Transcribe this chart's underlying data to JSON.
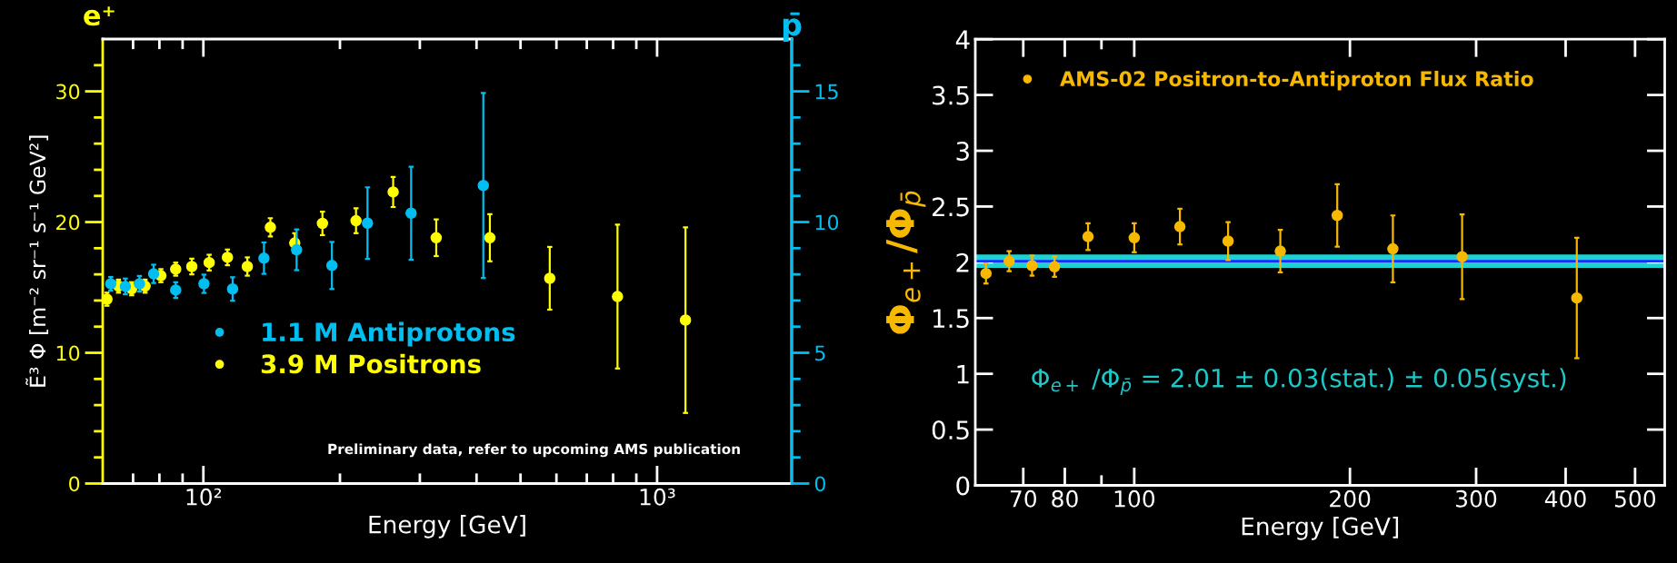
{
  "chart_data": [
    {
      "type": "scatter",
      "xlabel": "Energy [GeV]",
      "ylabel": "Ẽ³ Φ [m⁻² sr⁻¹ s⁻¹ GeV²]",
      "y2label": "p̄",
      "log": "x",
      "grid": false,
      "legend": "left",
      "marker": "circle",
      "annotations": [
        "e⁺",
        "Preliminary data, refer to upcoming AMS publication"
      ],
      "xlim": [
        60,
        1980
      ],
      "xticks": [
        {
          "value": 70,
          "label": null
        },
        {
          "value": 80,
          "label": null
        },
        {
          "value": 90,
          "label": null
        },
        {
          "value": 100,
          "label": "10²"
        },
        {
          "value": 200,
          "label": null
        },
        {
          "value": 300,
          "label": null
        },
        {
          "value": 400,
          "label": null
        },
        {
          "value": 500,
          "label": null
        },
        {
          "value": 600,
          "label": null
        },
        {
          "value": 700,
          "label": null
        },
        {
          "value": 800,
          "label": null
        },
        {
          "value": 900,
          "label": null
        },
        {
          "value": 1000,
          "label": "10³"
        }
      ],
      "ylim": [
        0,
        34
      ],
      "yticks": [
        0,
        {
          "value": 2,
          "label": null
        },
        {
          "value": 4,
          "label": null
        },
        {
          "value": 6,
          "label": null
        },
        {
          "value": 8,
          "label": null
        },
        10,
        {
          "value": 12,
          "label": null
        },
        {
          "value": 14,
          "label": null
        },
        {
          "value": 16,
          "label": null
        },
        {
          "value": 18,
          "label": null
        },
        20,
        {
          "value": 22,
          "label": null
        },
        {
          "value": 24,
          "label": null
        },
        {
          "value": 26,
          "label": null
        },
        {
          "value": 28,
          "label": null
        },
        30,
        {
          "value": 32,
          "label": null
        }
      ],
      "y2lim": [
        0,
        17
      ],
      "y2ticks": [
        0,
        {
          "value": 1,
          "label": null
        },
        {
          "value": 2,
          "label": null
        },
        {
          "value": 3,
          "label": null
        },
        {
          "value": 4,
          "label": null
        },
        5,
        {
          "value": 6,
          "label": null
        },
        {
          "value": 7,
          "label": null
        },
        {
          "value": 8,
          "label": null
        },
        {
          "value": 9,
          "label": null
        },
        10,
        {
          "value": 11,
          "label": null
        },
        {
          "value": 12,
          "label": null
        },
        {
          "value": 13,
          "label": null
        },
        {
          "value": 14,
          "label": null
        },
        15,
        {
          "value": 16,
          "label": null
        }
      ],
      "series": [
        {
          "name": "1.1 M Antiprotons",
          "color": "#00bff0",
          "axis": "y2",
          "x": [
            62.5,
            67.3,
            72.3,
            77.7,
            86.9,
            100.3,
            116,
            136,
            160.5,
            192,
            230,
            287,
            414
          ],
          "values": [
            7.64,
            7.54,
            7.64,
            8.02,
            7.4,
            7.64,
            7.44,
            8.62,
            8.94,
            8.34,
            9.96,
            10.34,
            11.4
          ],
          "errors": [
            0.26,
            0.3,
            0.3,
            0.35,
            0.3,
            0.35,
            0.45,
            0.6,
            0.78,
            0.9,
            1.37,
            1.78,
            3.54
          ]
        },
        {
          "name": "3.9 M Positrons",
          "color": "#ffff00",
          "x": [
            61.3,
            65,
            69.5,
            74.4,
            80.6,
            86.9,
            94.3,
            103,
            113,
            125,
            140.5,
            159,
            183,
            217,
            262,
            326,
            428,
            580,
            818,
            1155
          ],
          "values": [
            14.1,
            15.1,
            14.9,
            15.1,
            15.9,
            16.4,
            16.6,
            16.9,
            17.3,
            16.6,
            19.6,
            18.4,
            19.9,
            20.1,
            22.3,
            18.8,
            18.8,
            15.7,
            14.3,
            12.5
          ],
          "errors": [
            0.5,
            0.5,
            0.5,
            0.5,
            0.5,
            0.5,
            0.6,
            0.6,
            0.6,
            0.7,
            0.7,
            0.75,
            0.9,
            0.95,
            1.15,
            1.4,
            1.8,
            2.4,
            5.5,
            7.1
          ]
        }
      ]
    },
    {
      "type": "scatter",
      "xlabel": "Energy [GeV]",
      "ylabel": "Φ$_{e+}$/Φ$_{p̄}$",
      "log": "x",
      "grid": false,
      "legend": "top left",
      "marker": "circle",
      "annotations": [
        "Φ$_{e+}$ /Φ$_{p̄}$ = 2.01 ± 0.03(stat.) ± 0.05(syst.)"
      ],
      "xlim": [
        60,
        550
      ],
      "xticks": [
        70,
        80,
        {
          "value": 90,
          "label": null
        },
        100,
        200,
        300,
        400,
        500
      ],
      "ylim": [
        0,
        4
      ],
      "yticks": [
        0,
        0.5,
        1,
        1.5,
        2,
        2.5,
        3,
        3.5,
        4
      ],
      "bands": [
        {
          "axis": "y",
          "from": 1.95,
          "to": 2.07,
          "color": "#1ed2d2"
        }
      ],
      "ref_lines": [
        {
          "axis": "y",
          "value": 2.01,
          "color": "#1a2cff"
        }
      ],
      "series": [
        {
          "name": "AMS-02 Positron-to-Antiproton Flux Ratio",
          "color": "#f7b800",
          "x": [
            62.1,
            66.9,
            72.0,
            77.4,
            86.2,
            100,
            115.8,
            135.2,
            159.9,
            192,
            229.6,
            286.8,
            414.6
          ],
          "values": [
            1.9,
            2.01,
            1.97,
            1.96,
            2.23,
            2.22,
            2.32,
            2.19,
            2.1,
            2.42,
            2.12,
            2.05,
            1.68
          ],
          "errors": [
            0.09,
            0.09,
            0.09,
            0.09,
            0.12,
            0.13,
            0.16,
            0.17,
            0.19,
            0.28,
            0.3,
            0.38,
            0.54
          ]
        }
      ]
    }
  ]
}
